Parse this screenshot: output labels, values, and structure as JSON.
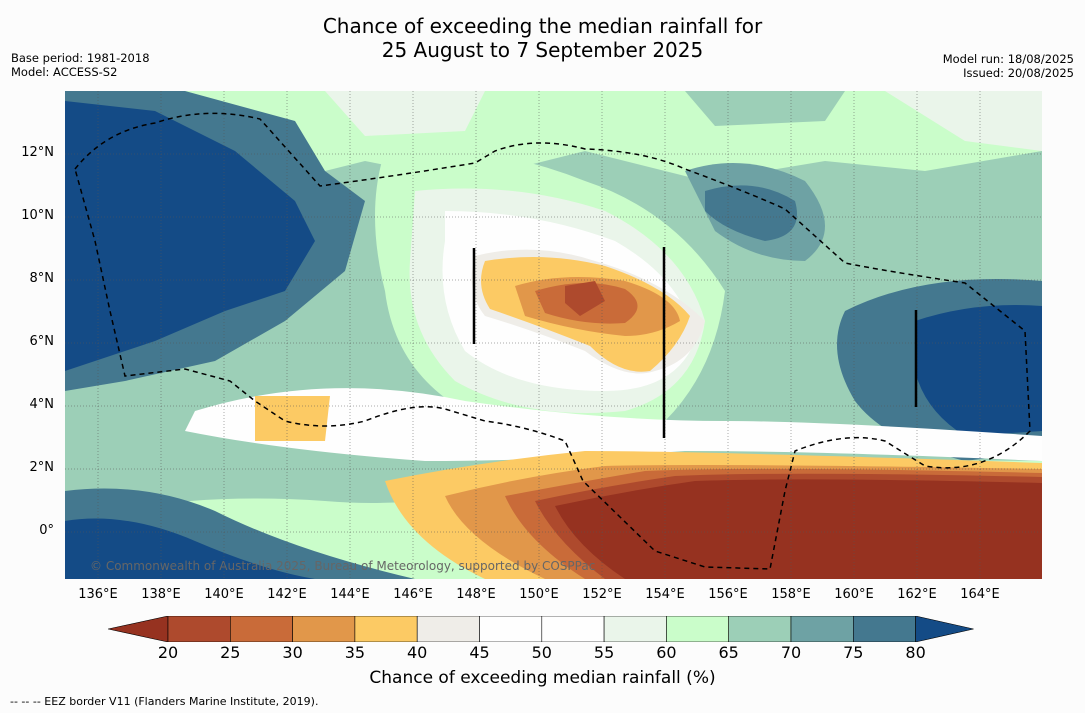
{
  "title_line1": "Chance of exceeding the median rainfall for",
  "title_line2": "25 August to 7 September 2025",
  "base_period": "Base period: 1981-2018",
  "model": "Model: ACCESS-S2",
  "model_run": "Model run: 18/08/2025",
  "issued": "Issued: 20/08/2025",
  "copyright": "© Commonwealth of Australia 2025, Bureau of Meteorology, supported by COSPPac",
  "lat_labels": [
    "12°N",
    "10°N",
    "8°N",
    "6°N",
    "4°N",
    "2°N",
    "0°"
  ],
  "lon_labels": [
    "136°E",
    "138°E",
    "140°E",
    "142°E",
    "144°E",
    "146°E",
    "148°E",
    "150°E",
    "152°E",
    "154°E",
    "156°E",
    "158°E",
    "160°E",
    "162°E",
    "164°E"
  ],
  "legend": {
    "label": "Chance of exceeding median rainfall (%)",
    "ticks": [
      "20",
      "25",
      "30",
      "35",
      "40",
      "45",
      "50",
      "55",
      "60",
      "65",
      "70",
      "75",
      "80"
    ],
    "colors": [
      "#963220",
      "#ae4a2d",
      "#c96b39",
      "#e1974a",
      "#fcca64",
      "#efede8",
      "#fefefe",
      "#fefefe",
      "#eaf5ea",
      "#cafdca",
      "#9ccfb7",
      "#6ea2a4",
      "#44788f",
      "#144b86"
    ]
  },
  "footnote": "--  --  -- EEZ border V11 (Flanders Marine Institute, 2019)."
}
